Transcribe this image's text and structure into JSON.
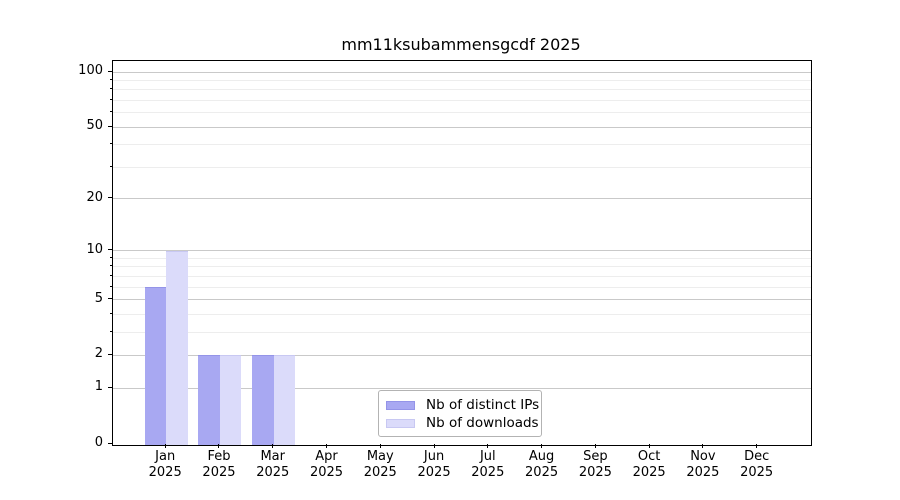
{
  "title": "mm11ksubammensgcdf 2025",
  "chart_data": {
    "type": "bar",
    "title": "mm11ksubammensgcdf 2025",
    "xlabel": "",
    "ylabel": "",
    "x_ticks": [
      {
        "month": "Jan",
        "year": "2025"
      },
      {
        "month": "Feb",
        "year": "2025"
      },
      {
        "month": "Mar",
        "year": "2025"
      },
      {
        "month": "Apr",
        "year": "2025"
      },
      {
        "month": "May",
        "year": "2025"
      },
      {
        "month": "Jun",
        "year": "2025"
      },
      {
        "month": "Jul",
        "year": "2025"
      },
      {
        "month": "Aug",
        "year": "2025"
      },
      {
        "month": "Sep",
        "year": "2025"
      },
      {
        "month": "Oct",
        "year": "2025"
      },
      {
        "month": "Nov",
        "year": "2025"
      },
      {
        "month": "Dec",
        "year": "2025"
      }
    ],
    "series": [
      {
        "name": "Nb of distinct IPs",
        "color": "#a8a8f2",
        "edge_color": "#9494e8",
        "values": [
          6,
          2,
          2,
          0,
          0,
          0,
          0,
          0,
          0,
          0,
          0,
          0
        ]
      },
      {
        "name": "Nb of downloads",
        "color": "#dbdbfa",
        "edge_color": "#c8c8f2",
        "values": [
          10,
          2,
          2,
          0,
          0,
          0,
          0,
          0,
          0,
          0,
          0,
          0
        ]
      }
    ],
    "yscale": "log10(value+1)",
    "ylim": [
      0,
      100
    ],
    "y_major_ticks": [
      0,
      1,
      2,
      5,
      10,
      20,
      50,
      100
    ],
    "y_minor_ticks": [
      3,
      4,
      6,
      7,
      8,
      9,
      30,
      40,
      60,
      70,
      80,
      90
    ],
    "grid": "horizontal major+minor",
    "legend_position": "lower center inside axes",
    "bar_width_fraction": 0.4
  },
  "colors": {
    "background": "#ffffff",
    "axis": "#000000",
    "grid_major": "#c9c9c9",
    "grid_minor": "#ededed",
    "legend_border": "#b3b3b3",
    "text": "#000000"
  }
}
